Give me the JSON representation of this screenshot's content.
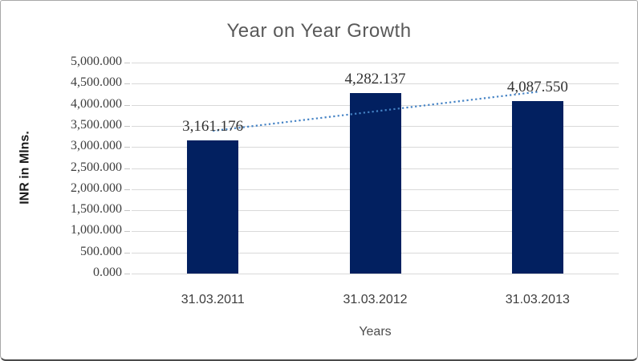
{
  "window": {
    "background": "#ffffff",
    "border_color": "#a8a8a8"
  },
  "chart_data": {
    "type": "bar",
    "title": "Year on Year Growth",
    "xlabel": "Years",
    "ylabel": "INR in Mlns.",
    "categories": [
      "31.03.2011",
      "31.03.2012",
      "31.03.2013"
    ],
    "values": [
      3161.176,
      4282.137,
      4087.55
    ],
    "data_labels": [
      "3,161.176",
      "4,282.137",
      "4,087.550"
    ],
    "ylim": [
      0,
      5000
    ],
    "ytick_step": 500,
    "ytick_labels": [
      "0.000",
      "500.000",
      "1,000.000",
      "1,500.000",
      "2,000.000",
      "2,500.000",
      "3,000.000",
      "3,500.000",
      "4,000.000",
      "4,500.000",
      "5,000.000"
    ],
    "grid": true,
    "legend": "none",
    "bar_color": "#022060",
    "gridline_color": "#d9d9d9",
    "title_color": "#595959",
    "trendline": {
      "type": "linear",
      "style": "dotted",
      "color": "#4583c5"
    }
  }
}
